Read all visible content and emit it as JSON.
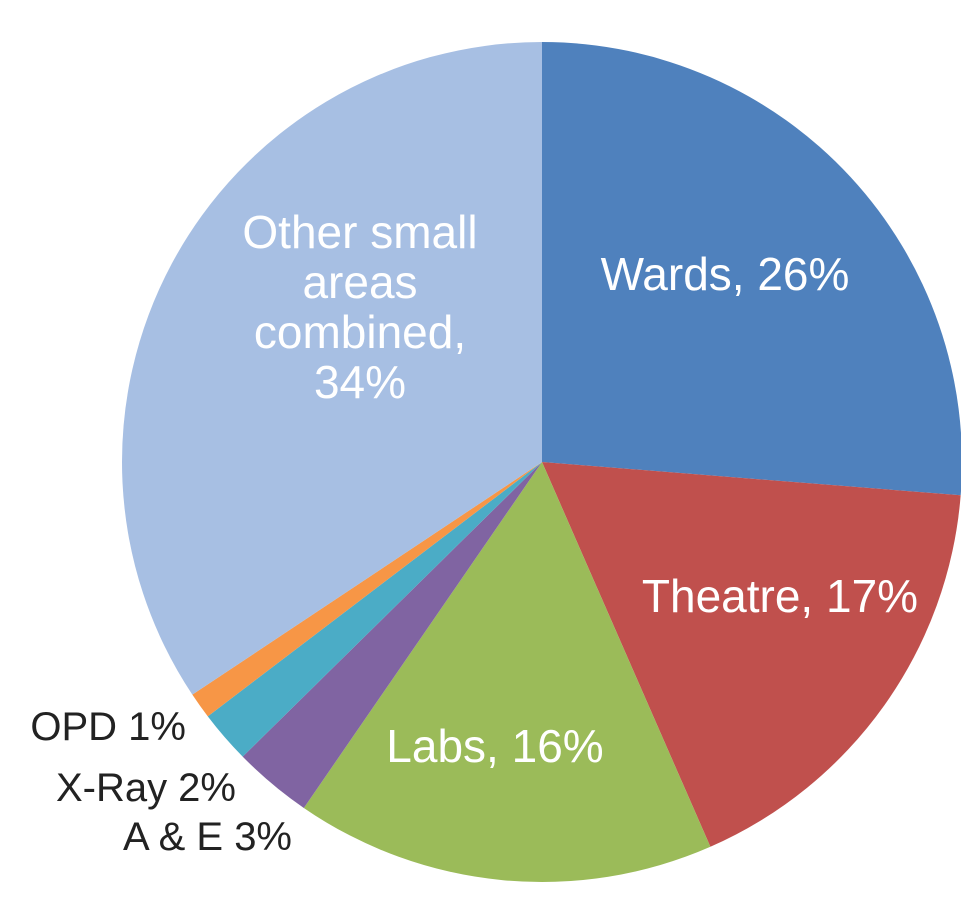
{
  "chart_data": {
    "type": "pie",
    "title": "",
    "start_angle_deg": 0,
    "direction": "clockwise",
    "slices": [
      {
        "label": "Wards",
        "display_label": "Wards, 26%",
        "value": 26,
        "color": "#4f81bd",
        "label_position": "inside"
      },
      {
        "label": "Theatre",
        "display_label": "Theatre, 17%",
        "value": 17,
        "color": "#c0504d",
        "label_position": "inside"
      },
      {
        "label": "Labs",
        "display_label": "Labs, 16%",
        "value": 16,
        "color": "#9bbb59",
        "label_position": "inside"
      },
      {
        "label": "A & E",
        "display_label": "A & E 3%",
        "value": 3,
        "color": "#8064a2",
        "label_position": "outside"
      },
      {
        "label": "X-Ray",
        "display_label": "X-Ray 2%",
        "value": 2,
        "color": "#4bacc6",
        "label_position": "outside"
      },
      {
        "label": "OPD",
        "display_label": "OPD 1%",
        "value": 1,
        "color": "#f79646",
        "label_position": "outside"
      },
      {
        "label": "Other small areas combined",
        "display_label_lines": [
          "Other small",
          "areas",
          "combined,",
          "34%"
        ],
        "value": 34,
        "color": "#a7bfe3",
        "label_position": "inside"
      }
    ]
  }
}
